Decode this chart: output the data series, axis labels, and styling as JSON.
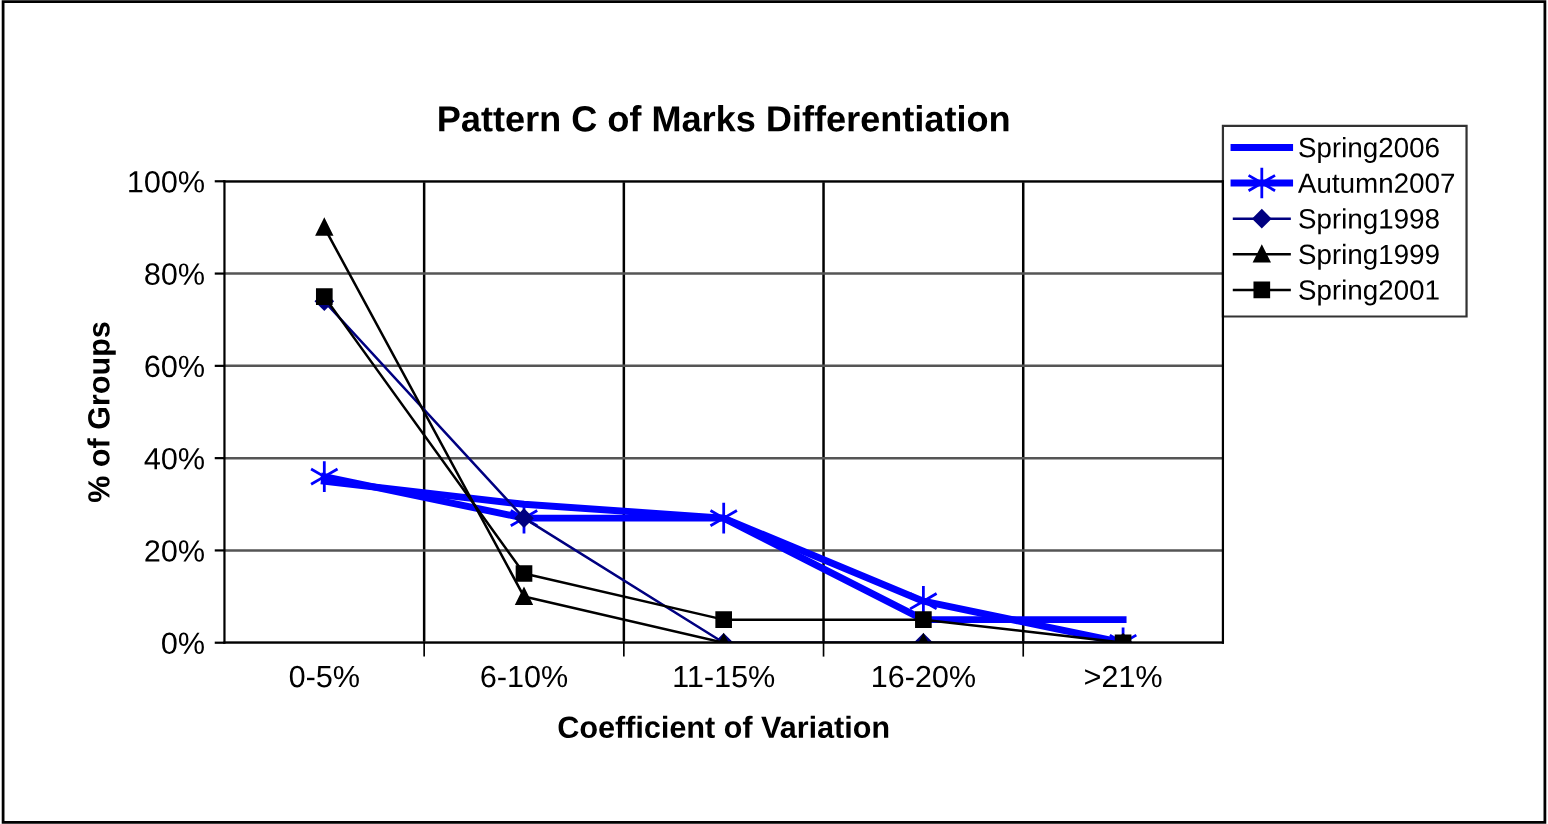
{
  "chart_data": {
    "type": "line",
    "title": "Pattern C of Marks Differentiation",
    "xlabel": "Coefficient of Variation",
    "ylabel": "% of Groups",
    "categories": [
      "0-5%",
      "6-10%",
      "11-15%",
      "16-20%",
      ">21%"
    ],
    "series": [
      {
        "name": "Spring2006",
        "color": "#0000ff",
        "marker": "none",
        "values": [
          35,
          30,
          27,
          5,
          5
        ]
      },
      {
        "name": "Autumn2007",
        "color": "#0000ff",
        "marker": "cross",
        "values": [
          36,
          27,
          27,
          9,
          0
        ]
      },
      {
        "name": "Spring1998",
        "color": "#000080",
        "marker": "diamond",
        "values": [
          74,
          27,
          0,
          0,
          0
        ]
      },
      {
        "name": "Spring1999",
        "color": "#000000",
        "marker": "triangle",
        "values": [
          90,
          10,
          0,
          0,
          0
        ]
      },
      {
        "name": "Spring2001",
        "color": "#000000",
        "marker": "square",
        "values": [
          75,
          15,
          5,
          5,
          0
        ]
      }
    ],
    "ylim": [
      0,
      100
    ],
    "yticks": [
      {
        "value": 0,
        "label": "0%"
      },
      {
        "value": 20,
        "label": "20%"
      },
      {
        "value": 40,
        "label": "40%"
      },
      {
        "value": 60,
        "label": "60%"
      },
      {
        "value": 80,
        "label": "80%"
      },
      {
        "value": 100,
        "label": "100%"
      }
    ],
    "grid": true,
    "legend": "top right"
  }
}
